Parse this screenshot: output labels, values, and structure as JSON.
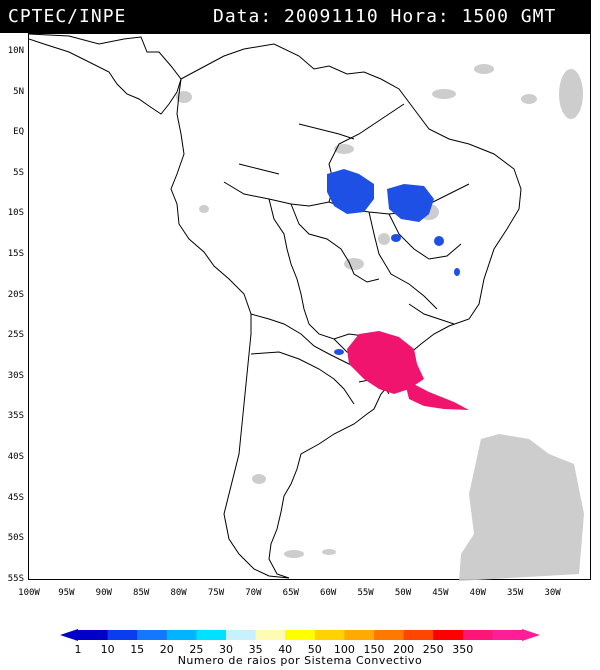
{
  "header": {
    "source": "CPTEC/INPE",
    "datetime": "Data: 20091110 Hora: 1500 GMT"
  },
  "lat_labels": [
    "10N",
    "5N",
    "EQ",
    "5S",
    "10S",
    "15S",
    "20S",
    "25S",
    "30S",
    "35S",
    "40S",
    "45S",
    "50S",
    "55S"
  ],
  "lon_labels": [
    "100W",
    "95W",
    "90W",
    "85W",
    "80W",
    "75W",
    "70W",
    "65W",
    "60W",
    "55W",
    "50W",
    "45W",
    "40W",
    "35W",
    "30W"
  ],
  "legend": {
    "caption": "Numero de raios por Sistema Convectivo",
    "ticks": [
      "1",
      "10",
      "15",
      "20",
      "25",
      "30",
      "35",
      "40",
      "50",
      "100",
      "150",
      "200",
      "250",
      "350"
    ],
    "colors": [
      "#0000c8",
      "#0a3cf0",
      "#1478ff",
      "#00b4ff",
      "#00e1ff",
      "#c8f0ff",
      "#fffab4",
      "#ffff00",
      "#ffd200",
      "#ffaa00",
      "#ff7800",
      "#ff4600",
      "#ff0000",
      "#ff1478",
      "#ff1e96"
    ]
  },
  "features": {
    "lightning_colors": {
      "low": "#1e50e6",
      "high": "#f0146e"
    },
    "cloud_color": "#c8c8c8"
  }
}
